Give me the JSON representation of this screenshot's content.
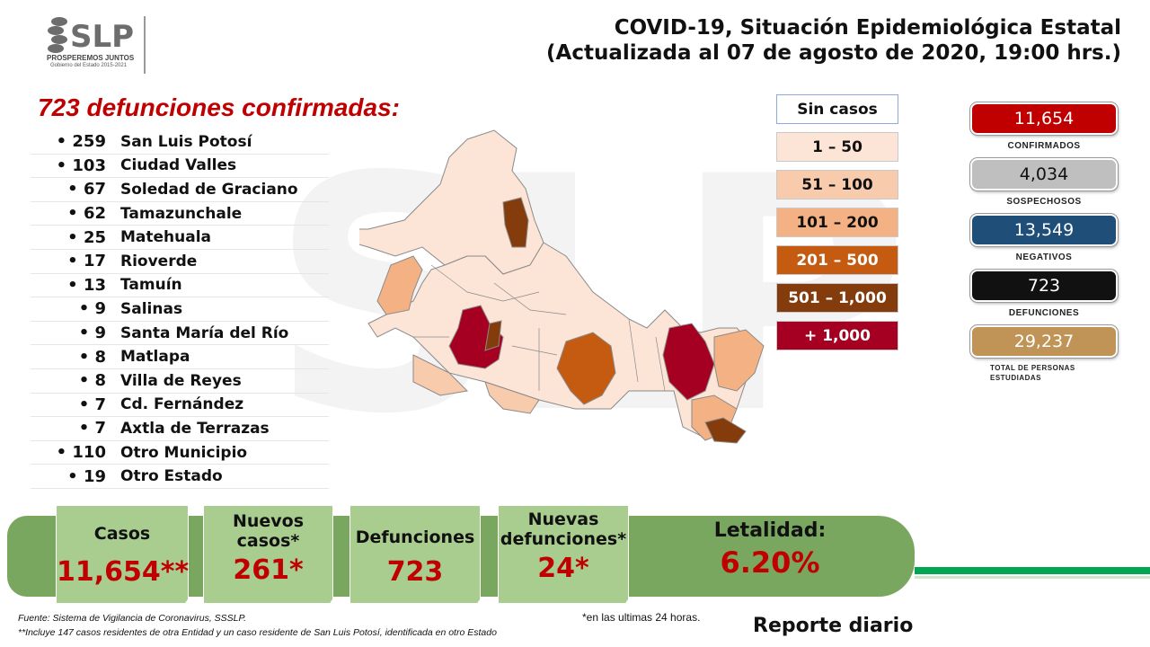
{
  "logo": {
    "text": "SLP",
    "tagline": "PROSPEREMOS JUNTOS",
    "subline": "Gobierno del Estado 2015-2021"
  },
  "header": {
    "title_line1": "COVID-19, Situación Epidemiológica Estatal",
    "title_line2": "(Actualizada al 07 de agosto de 2020, 19:00 hrs.)"
  },
  "deaths": {
    "heading": "723 defunciones confirmadas:",
    "rows": [
      {
        "count": "• 259",
        "name": "San Luis Potosí"
      },
      {
        "count": "• 103",
        "name": "Ciudad Valles"
      },
      {
        "count": "• 67",
        "name": "Soledad de Graciano"
      },
      {
        "count": "• 62",
        "name": "Tamazunchale"
      },
      {
        "count": "• 25",
        "name": "Matehuala"
      },
      {
        "count": "• 17",
        "name": "Rioverde"
      },
      {
        "count": "• 13",
        "name": "Tamuín"
      },
      {
        "count": "• 9",
        "name": "Salinas"
      },
      {
        "count": "• 9",
        "name": "Santa María del Río"
      },
      {
        "count": "• 8",
        "name": "Matlapa"
      },
      {
        "count": "• 8",
        "name": "Villa de Reyes"
      },
      {
        "count": "• 7",
        "name": "Cd. Fernández"
      },
      {
        "count": "• 7",
        "name": "Axtla de Terrazas"
      },
      {
        "count": "• 110",
        "name": "Otro Municipio"
      },
      {
        "count": "• 19",
        "name": "Otro Estado"
      }
    ]
  },
  "legend": [
    {
      "label": "Sin casos",
      "bg": "#ffffff",
      "fg": "#111111"
    },
    {
      "label": "1 – 50",
      "bg": "#fce4d6",
      "fg": "#111111"
    },
    {
      "label": "51 – 100",
      "bg": "#f8cbad",
      "fg": "#111111"
    },
    {
      "label": "101 – 200",
      "bg": "#f4b183",
      "fg": "#111111"
    },
    {
      "label": "201 – 500",
      "bg": "#c55a11",
      "fg": "#ffffff"
    },
    {
      "label": "501 – 1,000",
      "bg": "#843c0c",
      "fg": "#ffffff"
    },
    {
      "label": "+ 1,000",
      "bg": "#a50021",
      "fg": "#ffffff"
    }
  ],
  "stats": [
    {
      "value": "11,654",
      "label": "CONFIRMADOS",
      "bg": "#c00000"
    },
    {
      "value": "4,034",
      "label": "SOSPECHOSOS",
      "bg": "#bfbfbf",
      "fg": "#111111"
    },
    {
      "value": "13,549",
      "label": "NEGATIVOS",
      "bg": "#1f4e79"
    },
    {
      "value": "723",
      "label": "DEFUNCIONES",
      "bg": "#111111"
    },
    {
      "value": "29,237",
      "label": "TOTAL DE PERSONAS ESTUDIADAS",
      "bg": "#c09456"
    }
  ],
  "cards": {
    "casos": {
      "label": "Casos",
      "value": "11,654**"
    },
    "nuevos": {
      "label": "Nuevos casos*",
      "value": "261*"
    },
    "defunciones": {
      "label": "Defunciones",
      "value": "723"
    },
    "nuevas_def": {
      "label": "Nuevas defunciones*",
      "value": "24*"
    },
    "letalidad": {
      "label": "Letalidad:",
      "value": "6.20%"
    }
  },
  "footer": {
    "source": "Fuente: Sistema de Vigilancia  de Coronavirus, SSSLP.",
    "note": "**Incluye 147 casos residentes de otra Entidad  y un caso residente de San Luis Potosí, identificada  en otro Estado",
    "note24": "*en las ultimas 24 horas.",
    "report": "Reporte diario"
  }
}
